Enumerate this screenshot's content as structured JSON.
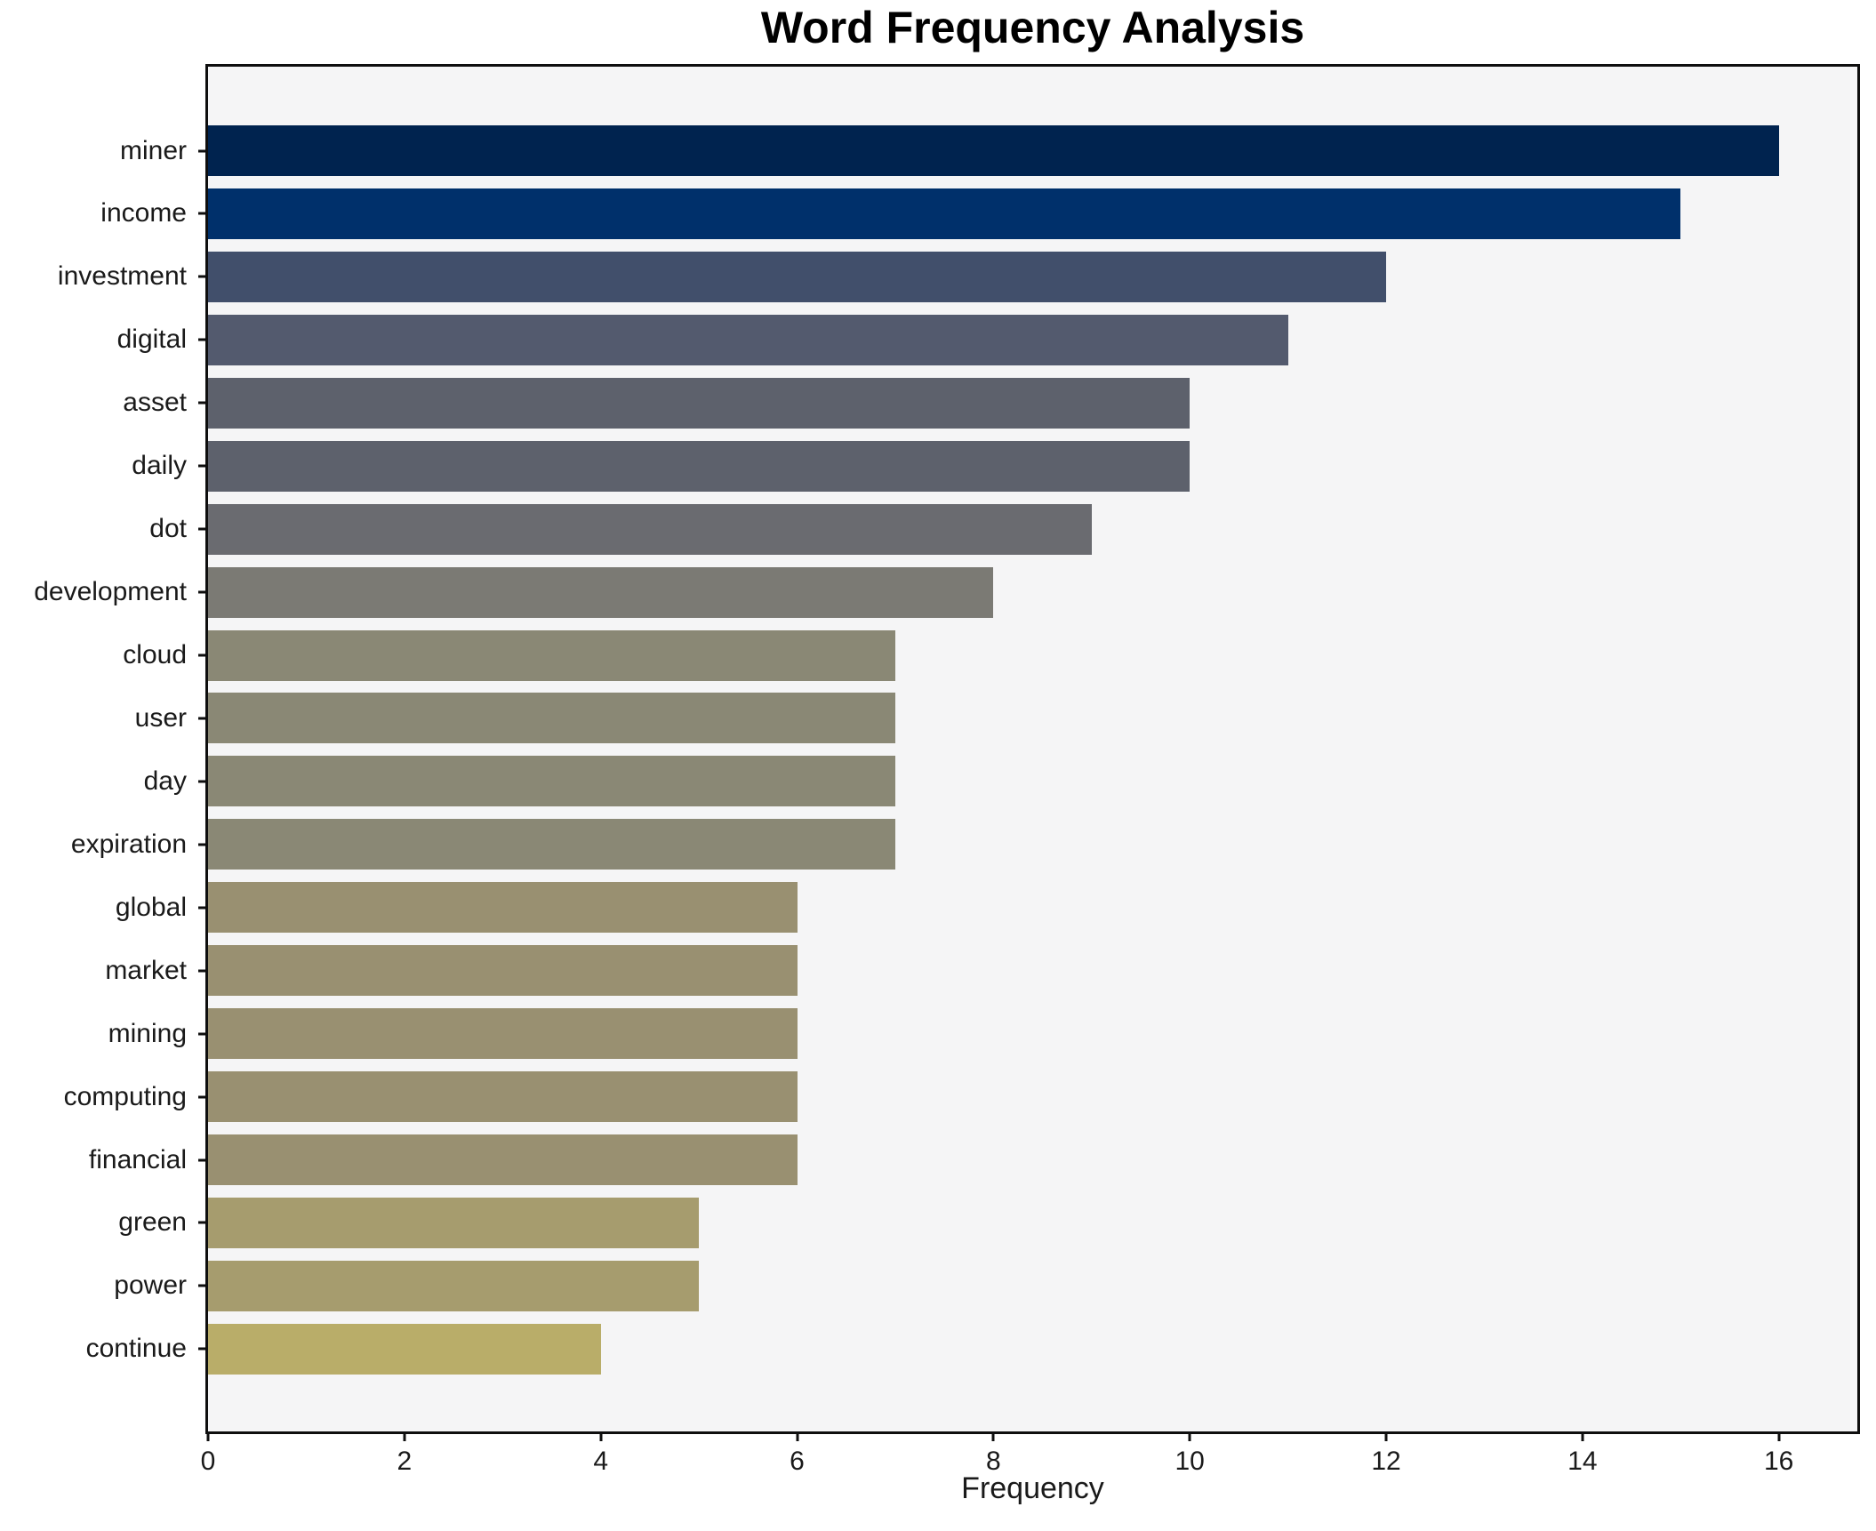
{
  "chart_data": {
    "type": "bar",
    "orientation": "horizontal",
    "title": "Word Frequency Analysis",
    "xlabel": "Frequency",
    "ylabel": "",
    "categories": [
      "miner",
      "income",
      "investment",
      "digital",
      "asset",
      "daily",
      "dot",
      "development",
      "cloud",
      "user",
      "day",
      "expiration",
      "global",
      "market",
      "mining",
      "computing",
      "financial",
      "green",
      "power",
      "continue"
    ],
    "values": [
      16,
      15,
      12,
      11,
      10,
      10,
      9,
      8,
      7,
      7,
      7,
      7,
      6,
      6,
      6,
      6,
      6,
      5,
      5,
      4
    ],
    "bar_colors": [
      "#00234f",
      "#00306b",
      "#414f6b",
      "#535a6e",
      "#5d616c",
      "#5d616c",
      "#6a6b70",
      "#7b7a74",
      "#8a8875",
      "#8a8875",
      "#8a8875",
      "#8a8875",
      "#999071",
      "#999071",
      "#999071",
      "#999071",
      "#999071",
      "#a69c6e",
      "#a69c6e",
      "#b9ad69"
    ],
    "x_ticks": [
      0,
      2,
      4,
      6,
      8,
      10,
      12,
      14,
      16
    ],
    "xlim": [
      0,
      16.8
    ],
    "grid": false,
    "legend": null,
    "plot_background": "#f5f5f6",
    "figure_background": "#ffffff",
    "spine_color": "#0e0e0e"
  }
}
